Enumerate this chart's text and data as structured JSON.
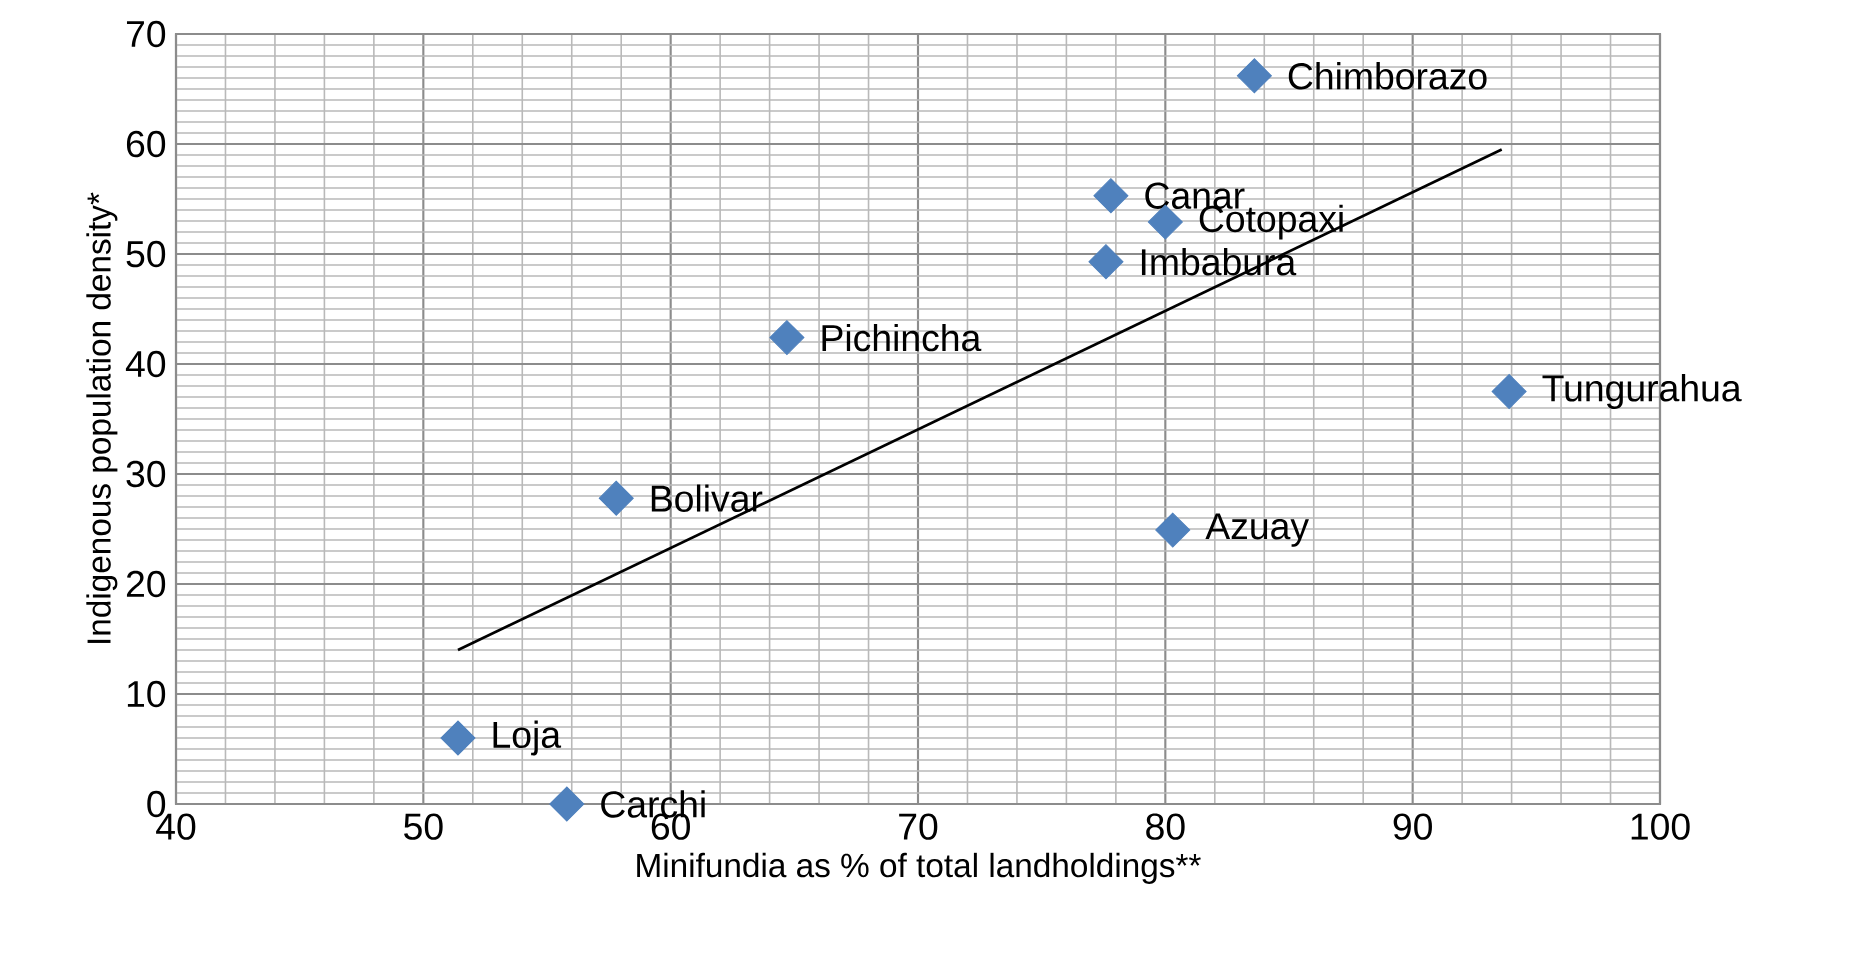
{
  "chart_data": {
    "type": "scatter",
    "xlabel": "Minifundia as % of total landholdings**",
    "ylabel": "Indigenous population density*",
    "xlim": [
      40,
      100
    ],
    "ylim": [
      0,
      70
    ],
    "xticks": [
      40,
      50,
      60,
      70,
      80,
      90,
      100
    ],
    "yticks": [
      0,
      10,
      20,
      30,
      40,
      50,
      60,
      70
    ],
    "grid": true,
    "series": [
      {
        "type": "scatter",
        "color": "#4f81bd",
        "marker": "diamond",
        "x": [
          83.6,
          77.8,
          80.0,
          77.6,
          64.7,
          93.9,
          57.8,
          80.3,
          51.4,
          55.8
        ],
        "values": [
          66.2,
          55.3,
          52.9,
          49.3,
          42.4,
          37.5,
          27.8,
          24.9,
          6.0,
          0
        ]
      },
      {
        "type": "line",
        "color": "#000000",
        "marker": "none",
        "x": [
          51.4,
          93.6
        ],
        "values": [
          14.0,
          59.5
        ]
      }
    ],
    "annotations": [
      {
        "text": "Chimborazo",
        "x": 83.6,
        "y": 66.2
      },
      {
        "text": "Canar",
        "x": 77.8,
        "y": 55.3
      },
      {
        "text": "Cotopaxi",
        "x": 80.0,
        "y": 52.9
      },
      {
        "text": "Imbabura",
        "x": 77.6,
        "y": 49.3
      },
      {
        "text": "Pichincha",
        "x": 64.7,
        "y": 42.4
      },
      {
        "text": "Tungurahua",
        "x": 93.9,
        "y": 37.5
      },
      {
        "text": "Bolivar",
        "x": 57.8,
        "y": 27.8
      },
      {
        "text": "Azuay",
        "x": 80.3,
        "y": 24.9
      },
      {
        "text": "Loja",
        "x": 51.4,
        "y": 6.0
      },
      {
        "text": "Carchi",
        "x": 55.8,
        "y": 0
      }
    ]
  }
}
